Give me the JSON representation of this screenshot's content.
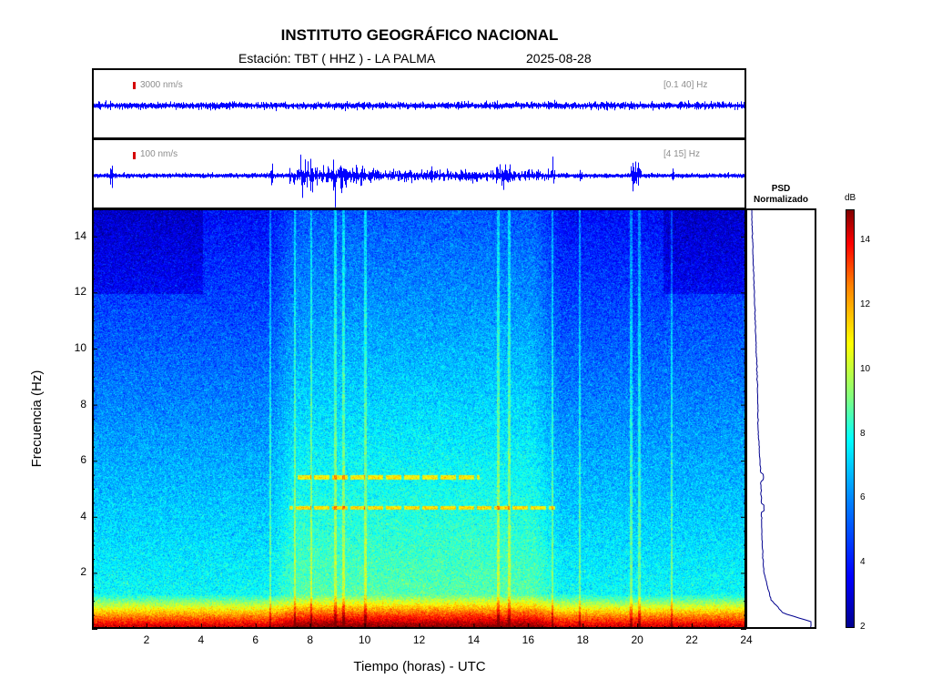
{
  "title": "INSTITUTO GEOGRÁFICO NACIONAL",
  "subtitle": {
    "station": "Estación:  TBT ( HHZ ) - LA PALMA",
    "date": "2025-08-28"
  },
  "traces": [
    {
      "scale_label": "3000 nm/s",
      "band_label": "[0.1 40] Hz",
      "color": "#0000ff"
    },
    {
      "scale_label": "100 nm/s",
      "band_label": "[4 15] Hz",
      "color": "#0000ff"
    }
  ],
  "psd": {
    "title_line1": "PSD",
    "title_line2": "Normalizado",
    "color": "#00008f"
  },
  "colorbar": {
    "label": "dB",
    "ticks": [
      "2",
      "4",
      "6",
      "8",
      "10",
      "12",
      "14"
    ],
    "range": [
      2,
      15
    ],
    "colormap": "jet"
  },
  "chart_data": {
    "type": "heatmap",
    "xlabel": "Tiempo (horas) - UTC",
    "ylabel": "Frecuencia  (Hz)",
    "xlim": [
      0,
      24
    ],
    "ylim": [
      0,
      15
    ],
    "xticks": [
      "2",
      "4",
      "6",
      "8",
      "10",
      "12",
      "14",
      "16",
      "18",
      "20",
      "22",
      "24"
    ],
    "yticks": [
      "2",
      "4",
      "6",
      "8",
      "10",
      "12",
      "14"
    ],
    "day_activity_window_hours": [
      6.5,
      17.2
    ],
    "spectral_lines": [
      {
        "freq_hz": 5.4,
        "start_h": 7.5,
        "end_h": 14.2
      },
      {
        "freq_hz": 4.3,
        "start_h": 7.2,
        "end_h": 17.0
      }
    ],
    "transient_times_h": [
      6.5,
      7.4,
      8.0,
      8.9,
      9.2,
      10.0,
      14.9,
      15.3,
      16.9,
      17.9,
      19.8,
      20.1,
      21.3
    ],
    "psd_profile": [
      {
        "freq_hz": 0.2,
        "value": 1.0
      },
      {
        "freq_hz": 0.5,
        "value": 0.55
      },
      {
        "freq_hz": 1.0,
        "value": 0.35
      },
      {
        "freq_hz": 2.0,
        "value": 0.24
      },
      {
        "freq_hz": 3.0,
        "value": 0.21
      },
      {
        "freq_hz": 4.3,
        "value": 0.2
      },
      {
        "freq_hz": 5.4,
        "value": 0.19
      },
      {
        "freq_hz": 7.0,
        "value": 0.15
      },
      {
        "freq_hz": 9.0,
        "value": 0.13
      },
      {
        "freq_hz": 11.0,
        "value": 0.1
      },
      {
        "freq_hz": 13.0,
        "value": 0.07
      },
      {
        "freq_hz": 15.0,
        "value": 0.04
      }
    ]
  }
}
